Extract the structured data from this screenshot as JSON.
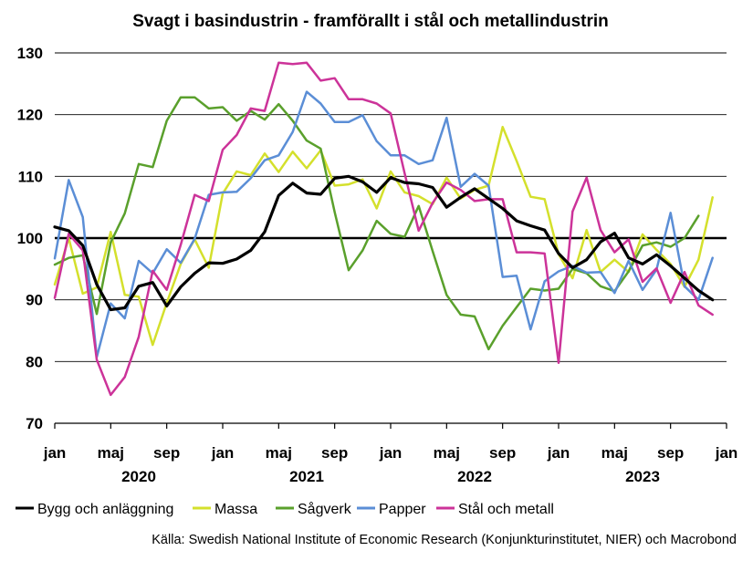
{
  "chart_data": {
    "type": "line",
    "title": "Svagt i basindustrin  - framförallt i stål och metallindustrin",
    "source": "Källa: Swedish National Institute of Economic Research (Konjunkturinstitutet, NIER) och Macrobond",
    "xlabel": "",
    "ylabel": "",
    "ylim": [
      70,
      130
    ],
    "yticks": [
      70,
      80,
      90,
      100,
      110,
      120,
      130
    ],
    "xlim": [
      "2020-01",
      "2024-01"
    ],
    "x_tick_labels": [
      "jan",
      "maj",
      "sep",
      "jan",
      "maj",
      "sep",
      "jan",
      "maj",
      "sep",
      "jan",
      "maj",
      "sep",
      "jan"
    ],
    "year_labels": [
      "2020",
      "2021",
      "2022",
      "2023"
    ],
    "reference_line": 100,
    "grid": "horizontal",
    "legend_position": "bottom",
    "x": [
      "2020-01",
      "2020-02",
      "2020-03",
      "2020-04",
      "2020-05",
      "2020-06",
      "2020-07",
      "2020-08",
      "2020-09",
      "2020-10",
      "2020-11",
      "2020-12",
      "2021-01",
      "2021-02",
      "2021-03",
      "2021-04",
      "2021-05",
      "2021-06",
      "2021-07",
      "2021-08",
      "2021-09",
      "2021-10",
      "2021-11",
      "2021-12",
      "2022-01",
      "2022-02",
      "2022-03",
      "2022-04",
      "2022-05",
      "2022-06",
      "2022-07",
      "2022-08",
      "2022-09",
      "2022-10",
      "2022-11",
      "2022-12",
      "2023-01",
      "2023-02",
      "2023-03",
      "2023-04",
      "2023-05",
      "2023-06",
      "2023-07",
      "2023-08",
      "2023-09",
      "2023-10",
      "2023-11",
      "2023-12"
    ],
    "series": [
      {
        "name": "Bygg och anläggning",
        "color": "#000000",
        "width": 3.2,
        "values": [
          101.8,
          101.2,
          98.8,
          92.5,
          88.4,
          88.7,
          92.2,
          92.8,
          89.0,
          92.1,
          94.3,
          96.0,
          95.9,
          96.6,
          98.0,
          101.0,
          106.9,
          108.9,
          107.3,
          107.1,
          109.7,
          110.0,
          109.1,
          107.4,
          109.8,
          109.0,
          108.8,
          108.2,
          105.0,
          106.6,
          108.0,
          106.4,
          104.8,
          102.8,
          102.0,
          101.3,
          97.5,
          95.2,
          96.5,
          99.4,
          100.8,
          96.8,
          95.8,
          97.3,
          95.5,
          93.5,
          91.5,
          90.0
        ]
      },
      {
        "name": "Massa",
        "color": "#d4e02c",
        "width": 2.5,
        "values": [
          92.5,
          100.0,
          91.0,
          92.0,
          101.0,
          90.8,
          90.5,
          82.7,
          89.5,
          95.8,
          99.8,
          95.2,
          107.2,
          110.8,
          110.2,
          113.7,
          110.7,
          114.0,
          111.3,
          114.2,
          108.5,
          108.7,
          109.5,
          104.8,
          110.8,
          107.4,
          106.8,
          105.5,
          109.8,
          106.4,
          107.8,
          108.5,
          118.0,
          112.5,
          106.7,
          106.3,
          97.4,
          93.5,
          101.3,
          94.5,
          96.5,
          94.5,
          100.6,
          98.1,
          95.8,
          92.1,
          96.5,
          106.6
        ]
      },
      {
        "name": "Sågverk",
        "color": "#5aa02c",
        "width": 2.5,
        "values": [
          95.7,
          96.8,
          97.2,
          87.7,
          99.3,
          104.0,
          112.0,
          111.5,
          119.0,
          122.8,
          122.8,
          121.0,
          121.2,
          119.0,
          120.6,
          119.2,
          121.7,
          119.0,
          115.8,
          114.5,
          104.2,
          94.8,
          98.0,
          102.8,
          100.7,
          100.2,
          105.2,
          97.9,
          90.8,
          87.6,
          87.3,
          82.0,
          85.8,
          88.8,
          91.8,
          91.5,
          91.8,
          95.0,
          94.3,
          92.2,
          91.4,
          94.6,
          98.8,
          99.3,
          98.6,
          100.0,
          103.6,
          null
        ]
      },
      {
        "name": "Papper",
        "color": "#5b8ed6",
        "width": 2.5,
        "values": [
          96.7,
          109.4,
          103.4,
          80.7,
          89.4,
          87.0,
          96.3,
          94.3,
          98.2,
          96.0,
          99.9,
          107.0,
          107.4,
          107.5,
          109.7,
          112.6,
          113.4,
          117.2,
          123.7,
          121.8,
          118.8,
          118.8,
          119.9,
          115.7,
          113.4,
          113.4,
          112.0,
          112.6,
          119.5,
          108.3,
          110.4,
          108.5,
          93.7,
          93.9,
          85.2,
          93.0,
          94.6,
          95.5,
          94.4,
          94.5,
          91.1,
          96.3,
          91.6,
          94.9,
          104.1,
          92.2,
          90.0,
          96.8
        ]
      },
      {
        "name": "Stål och metall",
        "color": "#cc3399",
        "width": 2.5,
        "values": [
          90.3,
          100.7,
          98.0,
          80.3,
          74.6,
          77.5,
          84.0,
          94.7,
          91.6,
          98.9,
          107.0,
          106.0,
          114.3,
          116.7,
          121.0,
          120.6,
          128.4,
          128.2,
          128.4,
          125.5,
          125.9,
          122.5,
          122.5,
          121.8,
          120.2,
          110.5,
          101.2,
          105.7,
          109.0,
          107.8,
          106.0,
          106.3,
          106.3,
          97.7,
          97.7,
          97.5,
          79.8,
          104.3,
          109.8,
          101.3,
          97.7,
          99.8,
          92.9,
          95.1,
          89.5,
          94.5,
          89.1,
          87.6
        ]
      }
    ]
  }
}
